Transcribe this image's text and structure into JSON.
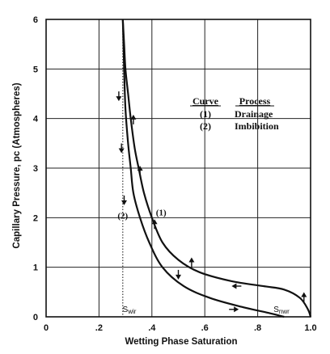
{
  "chart_data": {
    "type": "line",
    "xlabel": "Wetting Phase Saturation",
    "ylabel": "Capillary Pressure, pc  (Atmospheres)",
    "xlim": [
      0,
      1.0
    ],
    "ylim": [
      0,
      6
    ],
    "grid": true,
    "x_ticks": [
      {
        "value": 0,
        "label": "0"
      },
      {
        "value": 0.2,
        "label": ".2"
      },
      {
        "value": 0.4,
        "label": ".4"
      },
      {
        "value": 0.6,
        "label": ".6"
      },
      {
        "value": 0.8,
        "label": ".8"
      },
      {
        "value": 1.0,
        "label": "1.0"
      }
    ],
    "y_ticks": [
      {
        "value": 0,
        "label": "0"
      },
      {
        "value": 1,
        "label": "1"
      },
      {
        "value": 2,
        "label": "2"
      },
      {
        "value": 3,
        "label": "3"
      },
      {
        "value": 4,
        "label": "4"
      },
      {
        "value": 5,
        "label": "5"
      },
      {
        "value": 6,
        "label": "6"
      }
    ],
    "series": [
      {
        "name": "(1)",
        "points": [
          [
            0.29,
            6.0
          ],
          [
            0.295,
            5.5
          ],
          [
            0.3,
            5.0
          ],
          [
            0.31,
            4.5
          ],
          [
            0.32,
            4.0
          ],
          [
            0.335,
            3.4
          ],
          [
            0.35,
            3.0
          ],
          [
            0.37,
            2.5
          ],
          [
            0.4,
            2.0
          ],
          [
            0.44,
            1.5
          ],
          [
            0.5,
            1.15
          ],
          [
            0.58,
            0.9
          ],
          [
            0.7,
            0.72
          ],
          [
            0.82,
            0.62
          ],
          [
            0.9,
            0.55
          ],
          [
            0.96,
            0.38
          ],
          [
            0.99,
            0.15
          ],
          [
            1.0,
            0.0
          ]
        ]
      },
      {
        "name": "(2)",
        "points": [
          [
            0.29,
            6.0
          ],
          [
            0.295,
            5.0
          ],
          [
            0.3,
            4.2
          ],
          [
            0.31,
            3.5
          ],
          [
            0.32,
            3.0
          ],
          [
            0.33,
            2.5
          ],
          [
            0.355,
            2.0
          ],
          [
            0.39,
            1.5
          ],
          [
            0.44,
            1.0
          ],
          [
            0.52,
            0.62
          ],
          [
            0.62,
            0.38
          ],
          [
            0.74,
            0.2
          ],
          [
            0.84,
            0.08
          ],
          [
            0.9,
            0.0
          ]
        ]
      }
    ],
    "vertical_line": {
      "x": 0.29,
      "style": "dotted"
    },
    "legend": {
      "placement": "top-right",
      "headers": [
        "Curve",
        "Process"
      ],
      "rows": [
        {
          "curve": "(1)",
          "process": "Drainage"
        },
        {
          "curve": "(2)",
          "process": "Imbibition"
        }
      ]
    },
    "annotations": [
      {
        "text": "(1)",
        "x": 0.435,
        "y": 2.05
      },
      {
        "text": "(2)",
        "x": 0.29,
        "y": 1.98
      },
      {
        "text": "Swir",
        "x": 0.315,
        "y": 0.1
      },
      {
        "text": "Snwr",
        "x": 0.89,
        "y": 0.1
      }
    ],
    "arrows": [
      {
        "x": 0.275,
        "y": 4.45,
        "dir": "down"
      },
      {
        "x": 0.33,
        "y": 3.98,
        "dir": "up"
      },
      {
        "x": 0.285,
        "y": 3.4,
        "dir": "down"
      },
      {
        "x": 0.355,
        "y": 2.95,
        "dir": "up"
      },
      {
        "x": 0.295,
        "y": 2.35,
        "dir": "down"
      },
      {
        "x": 0.41,
        "y": 1.87,
        "dir": "up"
      },
      {
        "x": 0.5,
        "y": 0.85,
        "dir": "down"
      },
      {
        "x": 0.55,
        "y": 1.1,
        "dir": "up"
      },
      {
        "x": 0.72,
        "y": 0.62,
        "dir": "left"
      },
      {
        "x": 0.71,
        "y": 0.15,
        "dir": "right"
      },
      {
        "x": 0.975,
        "y": 0.4,
        "dir": "up"
      }
    ]
  }
}
